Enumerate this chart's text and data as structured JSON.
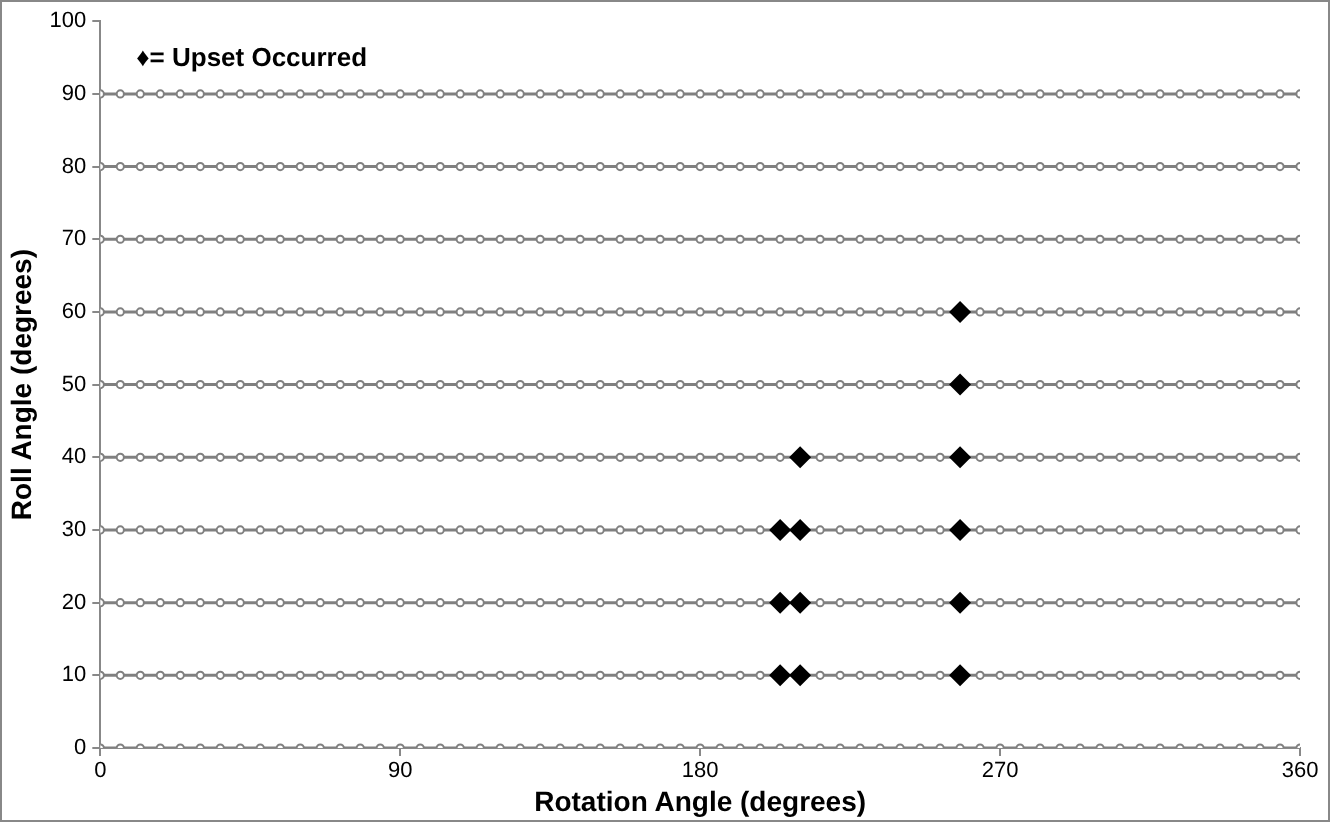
{
  "chart_data": {
    "type": "scatter",
    "xlabel": "Rotation Angle (degrees)",
    "ylabel": "Roll Angle (degrees)",
    "annotations": [
      "♦= Upset Occurred"
    ],
    "x": [
      0,
      6,
      12,
      18,
      24,
      30,
      36,
      42,
      48,
      54,
      60,
      66,
      72,
      78,
      84,
      90,
      96,
      102,
      108,
      114,
      120,
      126,
      132,
      138,
      144,
      150,
      156,
      162,
      168,
      174,
      180,
      186,
      192,
      198,
      204,
      210,
      216,
      222,
      228,
      234,
      240,
      246,
      252,
      258,
      264,
      270,
      276,
      282,
      288,
      294,
      300,
      306,
      312,
      318,
      324,
      330,
      336,
      342,
      348,
      354,
      360
    ],
    "xlim": [
      0,
      360
    ],
    "xticks": [
      0,
      90,
      180,
      270,
      360
    ],
    "ylim": [
      0,
      100
    ],
    "yticks": [
      0,
      10,
      20,
      30,
      40,
      50,
      60,
      70,
      80,
      90,
      100
    ],
    "grid": false,
    "legend": false,
    "series": [
      {
        "type": "line",
        "color": "#808080",
        "marker": "circle",
        "line_style": "solid",
        "values": [
          0,
          0,
          0,
          0,
          0,
          0,
          0,
          0,
          0,
          0,
          0,
          0,
          0,
          0,
          0,
          0,
          0,
          0,
          0,
          0,
          0,
          0,
          0,
          0,
          0,
          0,
          0,
          0,
          0,
          0,
          0,
          0,
          0,
          0,
          0,
          0,
          0,
          0,
          0,
          0,
          0,
          0,
          0,
          0,
          0,
          0,
          0,
          0,
          0,
          0,
          0,
          0,
          0,
          0,
          0,
          0,
          0,
          0,
          0,
          0,
          0
        ]
      },
      {
        "type": "line",
        "color": "#808080",
        "marker": "circle",
        "line_style": "solid",
        "values": [
          10,
          10,
          10,
          10,
          10,
          10,
          10,
          10,
          10,
          10,
          10,
          10,
          10,
          10,
          10,
          10,
          10,
          10,
          10,
          10,
          10,
          10,
          10,
          10,
          10,
          10,
          10,
          10,
          10,
          10,
          10,
          10,
          10,
          10,
          10,
          10,
          10,
          10,
          10,
          10,
          10,
          10,
          10,
          10,
          10,
          10,
          10,
          10,
          10,
          10,
          10,
          10,
          10,
          10,
          10,
          10,
          10,
          10,
          10,
          10,
          10
        ]
      },
      {
        "type": "line",
        "color": "#808080",
        "marker": "circle",
        "line_style": "solid",
        "values": [
          20,
          20,
          20,
          20,
          20,
          20,
          20,
          20,
          20,
          20,
          20,
          20,
          20,
          20,
          20,
          20,
          20,
          20,
          20,
          20,
          20,
          20,
          20,
          20,
          20,
          20,
          20,
          20,
          20,
          20,
          20,
          20,
          20,
          20,
          20,
          20,
          20,
          20,
          20,
          20,
          20,
          20,
          20,
          20,
          20,
          20,
          20,
          20,
          20,
          20,
          20,
          20,
          20,
          20,
          20,
          20,
          20,
          20,
          20,
          20,
          20
        ]
      },
      {
        "type": "line",
        "color": "#808080",
        "marker": "circle",
        "line_style": "solid",
        "values": [
          30,
          30,
          30,
          30,
          30,
          30,
          30,
          30,
          30,
          30,
          30,
          30,
          30,
          30,
          30,
          30,
          30,
          30,
          30,
          30,
          30,
          30,
          30,
          30,
          30,
          30,
          30,
          30,
          30,
          30,
          30,
          30,
          30,
          30,
          30,
          30,
          30,
          30,
          30,
          30,
          30,
          30,
          30,
          30,
          30,
          30,
          30,
          30,
          30,
          30,
          30,
          30,
          30,
          30,
          30,
          30,
          30,
          30,
          30,
          30,
          30
        ]
      },
      {
        "type": "line",
        "color": "#808080",
        "marker": "circle",
        "line_style": "solid",
        "values": [
          40,
          40,
          40,
          40,
          40,
          40,
          40,
          40,
          40,
          40,
          40,
          40,
          40,
          40,
          40,
          40,
          40,
          40,
          40,
          40,
          40,
          40,
          40,
          40,
          40,
          40,
          40,
          40,
          40,
          40,
          40,
          40,
          40,
          40,
          40,
          40,
          40,
          40,
          40,
          40,
          40,
          40,
          40,
          40,
          40,
          40,
          40,
          40,
          40,
          40,
          40,
          40,
          40,
          40,
          40,
          40,
          40,
          40,
          40,
          40,
          40
        ]
      },
      {
        "type": "line",
        "color": "#808080",
        "marker": "circle",
        "line_style": "solid",
        "values": [
          50,
          50,
          50,
          50,
          50,
          50,
          50,
          50,
          50,
          50,
          50,
          50,
          50,
          50,
          50,
          50,
          50,
          50,
          50,
          50,
          50,
          50,
          50,
          50,
          50,
          50,
          50,
          50,
          50,
          50,
          50,
          50,
          50,
          50,
          50,
          50,
          50,
          50,
          50,
          50,
          50,
          50,
          50,
          50,
          50,
          50,
          50,
          50,
          50,
          50,
          50,
          50,
          50,
          50,
          50,
          50,
          50,
          50,
          50,
          50,
          50
        ]
      },
      {
        "type": "line",
        "color": "#808080",
        "marker": "circle",
        "line_style": "solid",
        "values": [
          60,
          60,
          60,
          60,
          60,
          60,
          60,
          60,
          60,
          60,
          60,
          60,
          60,
          60,
          60,
          60,
          60,
          60,
          60,
          60,
          60,
          60,
          60,
          60,
          60,
          60,
          60,
          60,
          60,
          60,
          60,
          60,
          60,
          60,
          60,
          60,
          60,
          60,
          60,
          60,
          60,
          60,
          60,
          60,
          60,
          60,
          60,
          60,
          60,
          60,
          60,
          60,
          60,
          60,
          60,
          60,
          60,
          60,
          60,
          60,
          60
        ]
      },
      {
        "type": "line",
        "color": "#808080",
        "marker": "circle",
        "line_style": "solid",
        "values": [
          70,
          70,
          70,
          70,
          70,
          70,
          70,
          70,
          70,
          70,
          70,
          70,
          70,
          70,
          70,
          70,
          70,
          70,
          70,
          70,
          70,
          70,
          70,
          70,
          70,
          70,
          70,
          70,
          70,
          70,
          70,
          70,
          70,
          70,
          70,
          70,
          70,
          70,
          70,
          70,
          70,
          70,
          70,
          70,
          70,
          70,
          70,
          70,
          70,
          70,
          70,
          70,
          70,
          70,
          70,
          70,
          70,
          70,
          70,
          70,
          70
        ]
      },
      {
        "type": "line",
        "color": "#808080",
        "marker": "circle",
        "line_style": "solid",
        "values": [
          80,
          80,
          80,
          80,
          80,
          80,
          80,
          80,
          80,
          80,
          80,
          80,
          80,
          80,
          80,
          80,
          80,
          80,
          80,
          80,
          80,
          80,
          80,
          80,
          80,
          80,
          80,
          80,
          80,
          80,
          80,
          80,
          80,
          80,
          80,
          80,
          80,
          80,
          80,
          80,
          80,
          80,
          80,
          80,
          80,
          80,
          80,
          80,
          80,
          80,
          80,
          80,
          80,
          80,
          80,
          80,
          80,
          80,
          80,
          80,
          80
        ]
      },
      {
        "type": "line",
        "color": "#808080",
        "marker": "circle",
        "line_style": "solid",
        "values": [
          90,
          90,
          90,
          90,
          90,
          90,
          90,
          90,
          90,
          90,
          90,
          90,
          90,
          90,
          90,
          90,
          90,
          90,
          90,
          90,
          90,
          90,
          90,
          90,
          90,
          90,
          90,
          90,
          90,
          90,
          90,
          90,
          90,
          90,
          90,
          90,
          90,
          90,
          90,
          90,
          90,
          90,
          90,
          90,
          90,
          90,
          90,
          90,
          90,
          90,
          90,
          90,
          90,
          90,
          90,
          90,
          90,
          90,
          90,
          90,
          90
        ]
      },
      {
        "type": "scatter",
        "color": "#000000",
        "marker": "diamond",
        "x": [
          204,
          204,
          204,
          210,
          210,
          210,
          210,
          258,
          258,
          258,
          258,
          258,
          258
        ],
        "values": [
          10,
          20,
          30,
          10,
          20,
          30,
          40,
          10,
          20,
          30,
          40,
          50,
          60
        ]
      }
    ]
  }
}
